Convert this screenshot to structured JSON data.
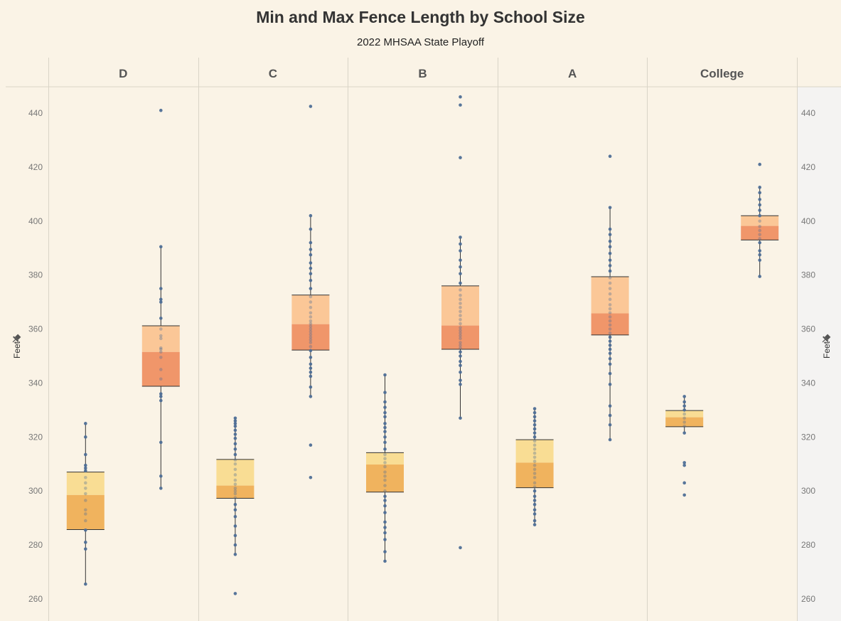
{
  "chart_data": {
    "type": "boxplot",
    "title": "Min and Max Fence Length by School Size",
    "subtitle": "2022 MHSAA State Playoff",
    "ylabel": "Feet",
    "ylim": [
      256,
      452
    ],
    "yticks": [
      260,
      280,
      300,
      320,
      340,
      360,
      380,
      400,
      420,
      440
    ],
    "panels": [
      {
        "name": "D",
        "boxes": [
          {
            "measure": "min",
            "q1": 285.7,
            "median": 298.5,
            "q3": 307.0,
            "whisker_low": 265.5,
            "whisker_high": 325.0,
            "points": [
              265.5,
              278.5,
              281.0,
              285.5,
              289.0,
              291.5,
              293.0,
              296.5,
              299.0,
              301.0,
              303.0,
              305.0,
              307.5,
              308.5,
              309.5,
              313.5,
              320.0,
              325.0
            ]
          },
          {
            "measure": "max",
            "q1": 338.8,
            "median": 351.5,
            "q3": 361.2,
            "whisker_low": 301.0,
            "whisker_high": 390.5,
            "points": [
              301.0,
              305.5,
              318.0,
              333.5,
              335.0,
              336.0,
              341.5,
              345.0,
              349.5,
              351.5,
              352.5,
              353.0,
              356.5,
              357.5,
              360.0,
              364.0,
              370.0,
              371.0,
              375.0,
              390.5,
              441.0
            ]
          }
        ]
      },
      {
        "name": "C",
        "boxes": [
          {
            "measure": "min",
            "q1": 297.3,
            "median": 302.0,
            "q3": 311.7,
            "whisker_low": 276.5,
            "whisker_high": 327.0,
            "points": [
              262.0,
              276.5,
              280.0,
              283.5,
              287.0,
              290.5,
              293.0,
              295.0,
              297.5,
              299.0,
              300.0,
              301.0,
              302.5,
              304.0,
              306.0,
              308.0,
              310.0,
              311.5,
              313.5,
              315.5,
              317.5,
              319.5,
              321.0,
              322.5,
              324.0,
              325.0,
              326.0,
              327.0
            ]
          },
          {
            "measure": "max",
            "q1": 352.2,
            "median": 361.8,
            "q3": 372.6,
            "whisker_low": 335.0,
            "whisker_high": 402.0,
            "points": [
              305.0,
              317.0,
              335.0,
              338.5,
              342.5,
              344.0,
              345.5,
              347.0,
              349.5,
              352.0,
              353.5,
              355.0,
              356.0,
              357.0,
              358.0,
              359.0,
              360.0,
              361.0,
              362.0,
              363.0,
              364.5,
              366.0,
              368.0,
              370.0,
              372.0,
              375.0,
              378.0,
              380.5,
              382.5,
              384.5,
              387.5,
              389.5,
              392.0,
              397.0,
              402.0,
              442.5
            ]
          }
        ]
      },
      {
        "name": "B",
        "boxes": [
          {
            "measure": "min",
            "q1": 299.6,
            "median": 309.8,
            "q3": 314.2,
            "whisker_low": 274.0,
            "whisker_high": 343.0,
            "points": [
              274.0,
              277.5,
              282.0,
              284.5,
              286.5,
              288.5,
              292.0,
              294.5,
              296.5,
              298.0,
              300.0,
              302.0,
              304.0,
              305.5,
              307.0,
              309.0,
              310.5,
              312.0,
              313.5,
              315.5,
              318.0,
              320.0,
              322.0,
              323.5,
              325.0,
              327.5,
              329.0,
              331.0,
              333.0,
              336.5,
              343.0
            ]
          },
          {
            "measure": "max",
            "q1": 352.5,
            "median": 361.3,
            "q3": 376.0,
            "whisker_low": 327.0,
            "whisker_high": 394.0,
            "points": [
              279.0,
              327.0,
              339.5,
              341.0,
              344.0,
              346.5,
              348.0,
              350.0,
              351.5,
              353.0,
              354.0,
              355.0,
              356.5,
              357.5,
              358.5,
              359.5,
              360.5,
              362.0,
              363.5,
              365.0,
              366.5,
              368.0,
              369.5,
              371.0,
              372.5,
              374.5,
              377.0,
              380.5,
              383.0,
              385.5,
              389.0,
              391.5,
              394.0,
              423.5,
              443.0,
              446.0
            ]
          }
        ]
      },
      {
        "name": "A",
        "boxes": [
          {
            "measure": "min",
            "q1": 301.2,
            "median": 310.5,
            "q3": 319.0,
            "whisker_low": 287.5,
            "whisker_high": 330.5,
            "points": [
              287.5,
              289.0,
              291.5,
              293.0,
              295.0,
              296.5,
              298.0,
              300.0,
              301.5,
              303.0,
              305.0,
              306.5,
              308.0,
              309.5,
              311.0,
              312.5,
              314.0,
              315.5,
              317.0,
              318.5,
              320.0,
              321.5,
              323.0,
              324.5,
              326.0,
              327.5,
              329.0,
              330.5
            ]
          },
          {
            "measure": "max",
            "q1": 357.8,
            "median": 365.8,
            "q3": 379.4,
            "whisker_low": 319.0,
            "whisker_high": 405.0,
            "points": [
              319.0,
              324.5,
              328.0,
              331.5,
              339.5,
              343.5,
              347.0,
              349.0,
              351.0,
              352.5,
              354.0,
              355.5,
              357.0,
              358.5,
              360.0,
              361.5,
              363.0,
              364.5,
              366.0,
              367.5,
              369.0,
              371.0,
              373.0,
              375.0,
              377.0,
              379.0,
              381.5,
              383.5,
              385.5,
              388.0,
              390.5,
              392.5,
              395.0,
              397.0,
              405.0,
              424.0
            ]
          }
        ]
      },
      {
        "name": "College",
        "boxes": [
          {
            "measure": "min",
            "q1": 323.8,
            "median": 327.3,
            "q3": 329.8,
            "whisker_low": 321.5,
            "whisker_high": 335.0,
            "points": [
              298.5,
              303.0,
              309.5,
              310.5,
              321.5,
              324.0,
              325.5,
              327.0,
              328.5,
              330.0,
              331.5,
              333.0,
              335.0
            ]
          },
          {
            "measure": "max",
            "q1": 393.0,
            "median": 398.2,
            "q3": 402.0,
            "whisker_low": 379.5,
            "whisker_high": 412.5,
            "points": [
              379.5,
              385.5,
              387.5,
              389.0,
              392.0,
              393.5,
              395.0,
              396.5,
              398.0,
              400.0,
              402.0,
              404.0,
              406.0,
              408.0,
              410.5,
              412.5,
              421.0
            ]
          }
        ]
      }
    ],
    "colors": {
      "min_upper": "#f9dd94",
      "min_lower": "#f0b35e",
      "max_upper": "#fbc797",
      "max_lower": "#f0966a",
      "points": "#4e6e96",
      "background": "#faf3e6",
      "right_axis_background": "#f4f3f2",
      "grid": "#d9d4c7"
    },
    "grid": false
  }
}
